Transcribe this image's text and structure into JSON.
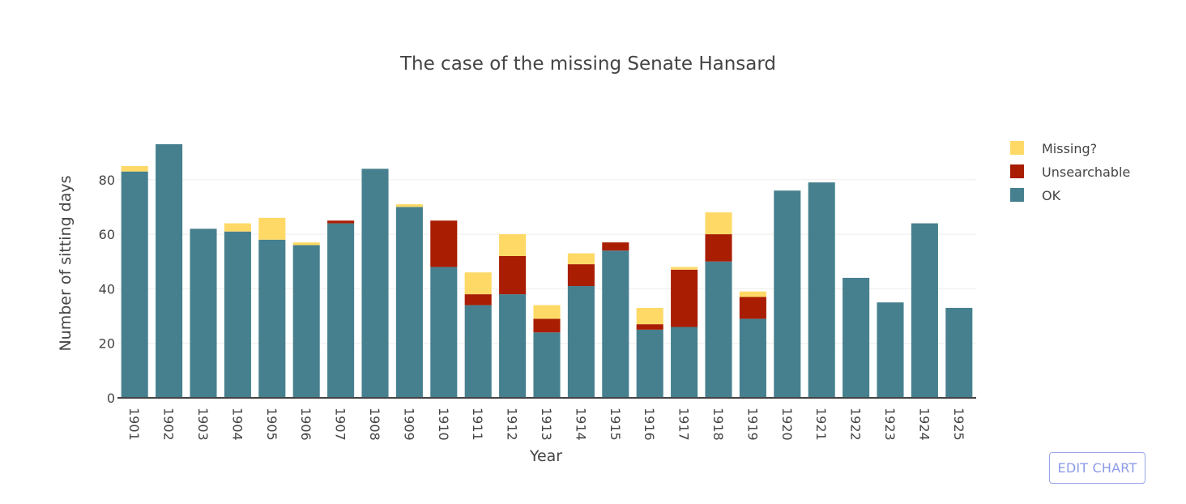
{
  "chart_data": {
    "type": "bar",
    "stacked": true,
    "title": "The case of the missing Senate Hansard",
    "xlabel": "Year",
    "ylabel": "Number of sitting days",
    "ylim": [
      0,
      93
    ],
    "yticks": [
      0,
      20,
      40,
      60,
      80
    ],
    "grid": true,
    "legend_position": "top-right",
    "categories": [
      "1901",
      "1902",
      "1903",
      "1904",
      "1905",
      "1906",
      "1907",
      "1908",
      "1909",
      "1910",
      "1911",
      "1912",
      "1913",
      "1914",
      "1915",
      "1916",
      "1917",
      "1918",
      "1919",
      "1920",
      "1921",
      "1922",
      "1923",
      "1924",
      "1925"
    ],
    "series": [
      {
        "name": "OK",
        "color": "#46808e",
        "values": [
          83,
          93,
          62,
          61,
          58,
          56,
          64,
          84,
          70,
          48,
          34,
          38,
          24,
          41,
          54,
          25,
          26,
          50,
          29,
          76,
          79,
          44,
          35,
          64,
          33
        ]
      },
      {
        "name": "Unsearchable",
        "color": "#a91d03",
        "values": [
          0,
          0,
          0,
          0,
          0,
          0,
          1,
          0,
          0,
          17,
          4,
          14,
          5,
          8,
          3,
          2,
          21,
          10,
          8,
          0,
          0,
          0,
          0,
          0,
          0
        ]
      },
      {
        "name": "Missing?",
        "color": "#fed966",
        "values": [
          2,
          0,
          0,
          3,
          8,
          1,
          0,
          0,
          1,
          0,
          8,
          8,
          5,
          4,
          0,
          6,
          1,
          8,
          2,
          0,
          0,
          0,
          0,
          0,
          0
        ]
      }
    ],
    "legend_order": [
      "Missing?",
      "Unsearchable",
      "OK"
    ]
  },
  "edit_button_label": "EDIT CHART"
}
